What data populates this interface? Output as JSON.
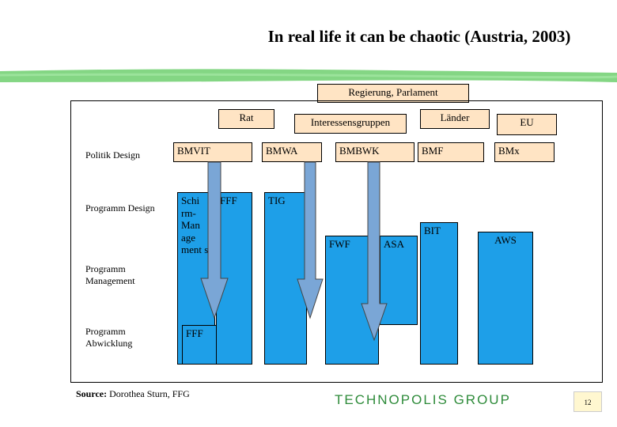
{
  "title": "In real life it can be chaotic (Austria, 2003)",
  "top_bar": {
    "regierung": "Regierung, Parlament"
  },
  "top_boxes": {
    "rat": "Rat",
    "interessensgruppen": "Interessensgruppen",
    "laender": "Länder",
    "eu": "EU"
  },
  "rows": {
    "politik_design": "Politik Design",
    "programm_design": "Programm Design",
    "programm_management": "Programm Management",
    "programm_abwicklung": "Programm Abwicklung"
  },
  "ministries": {
    "bmvit": "BMVIT",
    "bmwa": "BMWA",
    "bmbwk": "BMBWK",
    "bmf": "BMF",
    "bmx": "BMx"
  },
  "agencies": {
    "schirm": "Schi rm-Man age ment s",
    "fff_top": "FFF",
    "tig": "TIG",
    "fwf": "FWF",
    "asa": "ASA",
    "bit": "BIT",
    "aws": "AWS",
    "fff_bottom": "FFF"
  },
  "source": {
    "bold": "Source:",
    "text": " Dorothea Sturn, FFG"
  },
  "logo": "TECHNOPOLIS GROUP",
  "page_number": "12",
  "colors": {
    "agency_blue": "#1e9fe8",
    "label_box": "#ffe4c4",
    "stripe_green": "#6fcf6f",
    "arrow_fill": "#7aa6d6",
    "logo_green": "#2e8b3a"
  }
}
